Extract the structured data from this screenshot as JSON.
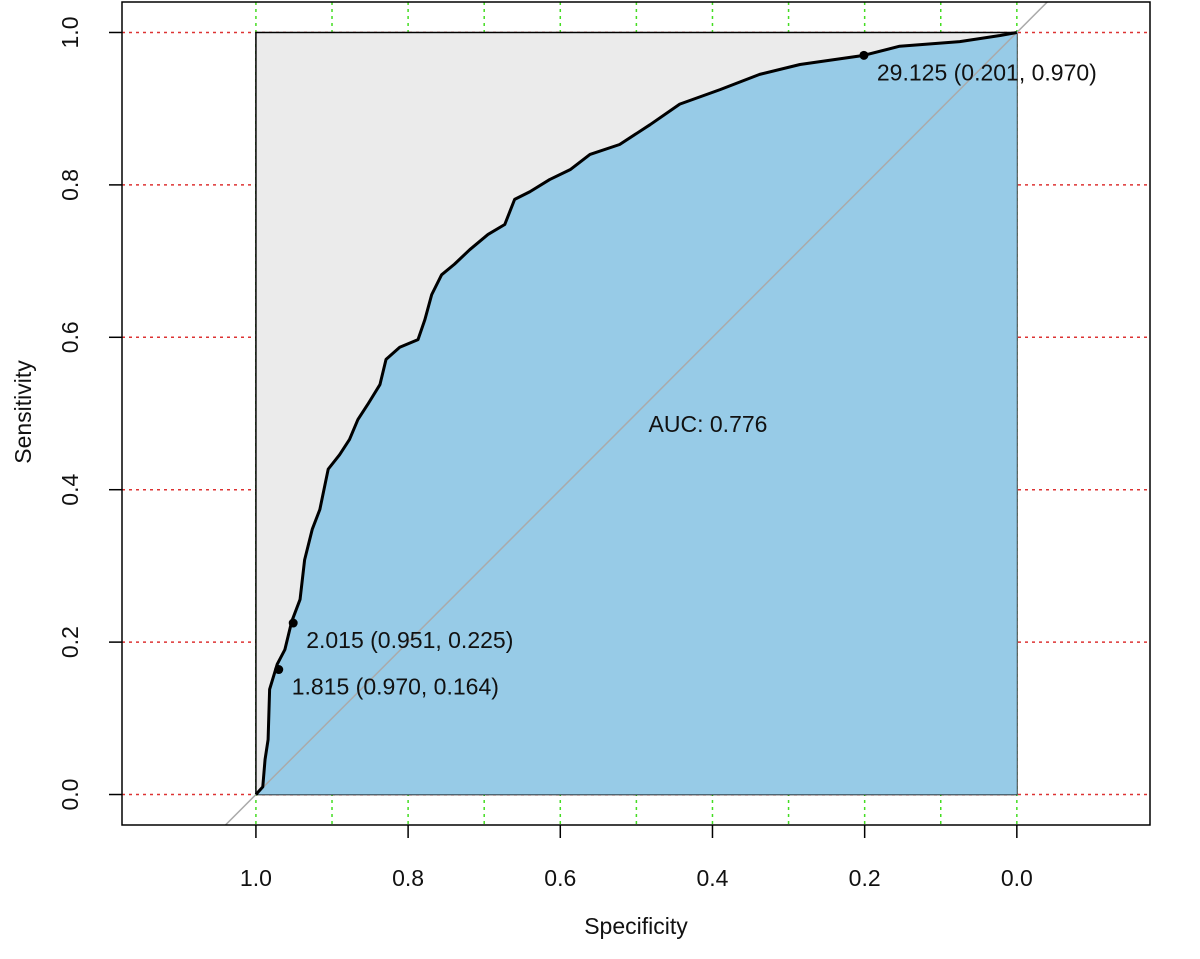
{
  "chart_data": {
    "type": "line",
    "x_label": "Specificity",
    "y_label": "Sensitivity",
    "x": [
      1.0,
      0.991,
      0.988,
      0.984,
      0.982,
      0.972,
      0.962,
      0.953,
      0.942,
      0.936,
      0.926,
      0.916,
      0.905,
      0.89,
      0.877,
      0.866,
      0.853,
      0.837,
      0.829,
      0.811,
      0.787,
      0.778,
      0.769,
      0.756,
      0.739,
      0.719,
      0.695,
      0.673,
      0.66,
      0.64,
      0.614,
      0.587,
      0.561,
      0.522,
      0.482,
      0.443,
      0.39,
      0.338,
      0.285,
      0.201,
      0.154,
      0.075,
      0.022,
      0.0
    ],
    "values": [
      0.0,
      0.01,
      0.046,
      0.072,
      0.138,
      0.171,
      0.19,
      0.227,
      0.256,
      0.308,
      0.348,
      0.374,
      0.427,
      0.446,
      0.466,
      0.492,
      0.512,
      0.538,
      0.571,
      0.587,
      0.597,
      0.623,
      0.656,
      0.682,
      0.696,
      0.715,
      0.735,
      0.748,
      0.781,
      0.791,
      0.807,
      0.82,
      0.84,
      0.853,
      0.879,
      0.906,
      0.925,
      0.945,
      0.958,
      0.97,
      0.982,
      0.988,
      0.996,
      1.0
    ],
    "color": "#000000",
    "fill_color": "#97cbe7",
    "background_color": "#ebebeb",
    "diagonal_color": "#aaaaaa",
    "points": [
      {
        "x": 0.201,
        "y": 0.97,
        "label": "29.125 (0.201, 0.970)"
      },
      {
        "x": 0.951,
        "y": 0.225,
        "label": "2.015 (0.951, 0.225)"
      },
      {
        "x": 0.97,
        "y": 0.164,
        "label": "1.815 (0.970, 0.164)"
      }
    ],
    "annotations": [
      "AUC: 0.776"
    ],
    "xlim": [
      1.176,
      -0.175
    ],
    "ylim": [
      -0.04,
      1.04
    ],
    "xticks": [
      {
        "value": 1.0,
        "label": "1.0"
      },
      {
        "value": 0.8,
        "label": "0.8"
      },
      {
        "value": 0.6,
        "label": "0.6"
      },
      {
        "value": 0.4,
        "label": "0.4"
      },
      {
        "value": 0.2,
        "label": "0.2"
      },
      {
        "value": 0.0,
        "label": "0.0"
      }
    ],
    "yticks": [
      {
        "value": 0.0,
        "label": "0.0"
      },
      {
        "value": 0.2,
        "label": "0.2"
      },
      {
        "value": 0.4,
        "label": "0.4"
      },
      {
        "value": 0.6,
        "label": "0.6"
      },
      {
        "value": 0.8,
        "label": "0.8"
      },
      {
        "value": 1.0,
        "label": "1.0"
      }
    ],
    "xgrid": [
      1.0,
      0.9,
      0.8,
      0.7,
      0.6,
      0.5,
      0.4,
      0.3,
      0.2,
      0.1,
      0.0
    ],
    "xgrid_color": "#44dd22",
    "ygrid_color": "#dd3333"
  }
}
